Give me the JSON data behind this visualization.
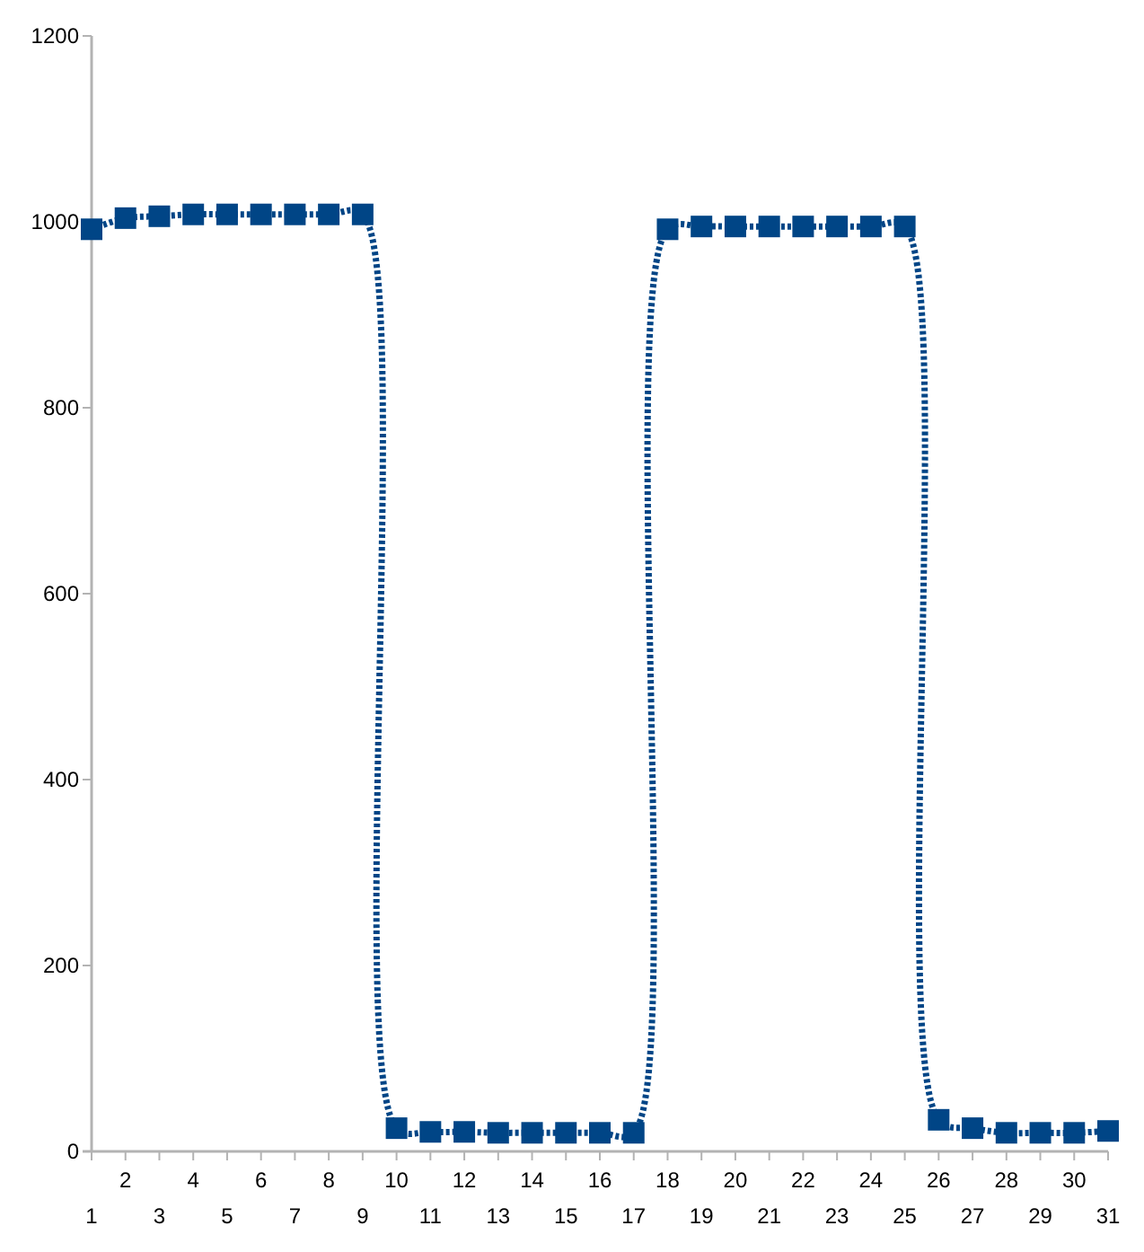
{
  "chart_data": {
    "type": "line",
    "categories": [
      "1",
      "2",
      "3",
      "4",
      "5",
      "6",
      "7",
      "8",
      "9",
      "10",
      "11",
      "12",
      "13",
      "14",
      "15",
      "16",
      "17",
      "18",
      "19",
      "20",
      "21",
      "22",
      "23",
      "24",
      "25",
      "26",
      "27",
      "28",
      "29",
      "30",
      "31"
    ],
    "series": [
      {
        "color": "#004586",
        "values": [
          992,
          1004,
          1006,
          1008,
          1008,
          1008,
          1008,
          1008,
          1008,
          25,
          21,
          21,
          20,
          20,
          20,
          20,
          20,
          992,
          995,
          995,
          995,
          995,
          995,
          995,
          995,
          34,
          25,
          20,
          20,
          20,
          22
        ]
      }
    ],
    "ylim": [
      0,
      1200
    ],
    "yticks": [
      0,
      200,
      400,
      600,
      800,
      1000,
      1200
    ],
    "grid": false,
    "marker": "square",
    "line_style": "dotted"
  }
}
